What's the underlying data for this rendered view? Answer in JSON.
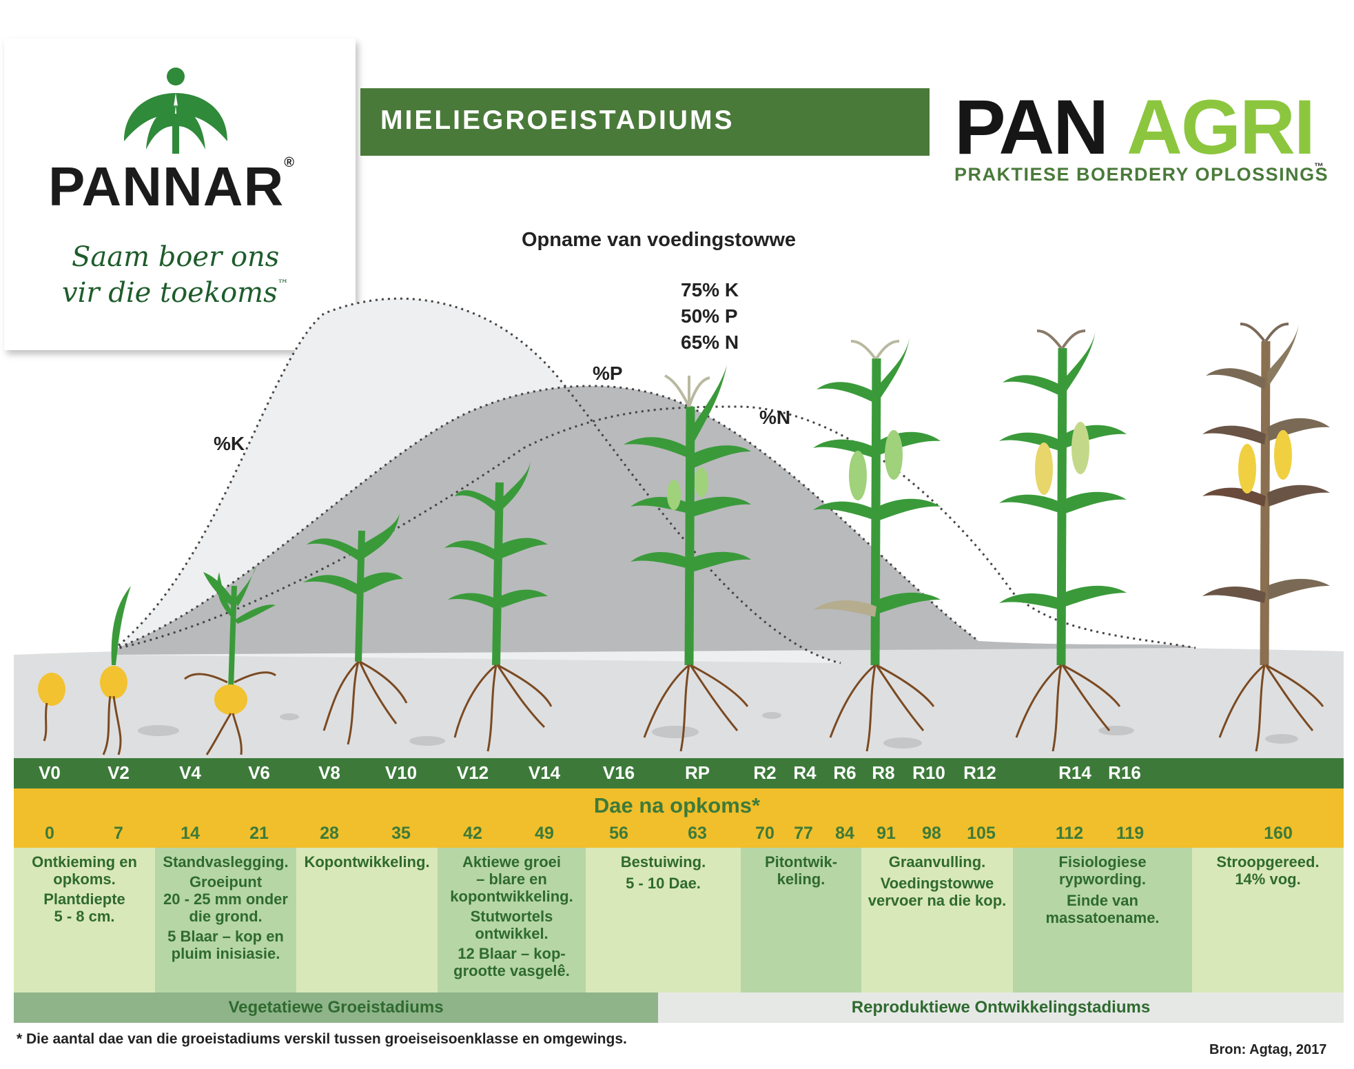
{
  "header": {
    "pannar": {
      "name": "PANNAR",
      "registered": "®",
      "slogan_line1": "Saam boer ons",
      "slogan_line2": "vir die toekoms",
      "tm": "™"
    },
    "title": "MIELIEGROEISTADIUMS",
    "panagri": {
      "name_part1": "PAN",
      "name_part2": "AGRI",
      "tm": "™",
      "subtitle": "PRAKTIESE BOERDERY OPLOSSINGS"
    }
  },
  "uptake": {
    "title": "Opname van voedingstowwe",
    "peak_lines": [
      "75% K",
      "50% P",
      "65% N"
    ],
    "curve_labels": {
      "k": "%K",
      "p": "%P",
      "n": "%N"
    }
  },
  "stages": [
    "V0",
    "V2",
    "V4",
    "V6",
    "V8",
    "V10",
    "V12",
    "V14",
    "V16",
    "RP",
    "R2",
    "R4",
    "R6",
    "R8",
    "R10",
    "R12",
    "R14",
    "R16"
  ],
  "days_label": "Dae na opkoms*",
  "days": [
    "0",
    "7",
    "14",
    "21",
    "28",
    "35",
    "42",
    "49",
    "56",
    "63",
    "70",
    "77",
    "84",
    "91",
    "98",
    "105",
    "112",
    "119",
    "160"
  ],
  "descriptions": [
    {
      "lines": [
        "Ontkieming en",
        "opkoms.",
        "Plantdiepte",
        "5 - 8 cm."
      ]
    },
    {
      "lines": [
        "Standvaslegging.",
        "Groeipunt",
        "20 - 25 mm onder",
        "die grond.",
        "5 Blaar – kop en",
        "pluim inisiasie."
      ]
    },
    {
      "lines": [
        "Kopontwikkeling."
      ]
    },
    {
      "lines": [
        "Aktiewe groei",
        "– blare en",
        "kopontwikkeling.",
        "Stutwortels",
        "ontwikkel.",
        "12 Blaar – kop-",
        "grootte vasgelê."
      ]
    },
    {
      "lines": [
        "Bestuiwing.",
        "5 - 10 Dae."
      ]
    },
    {
      "lines": [
        "Pitontwik-",
        "keling."
      ]
    },
    {
      "lines": [
        "Graanvulling.",
        "Voedingstowwe",
        "vervoer na die kop."
      ]
    },
    {
      "lines": [
        "Fisiologiese",
        "rypwording.",
        "Einde van",
        "massatoename."
      ]
    },
    {
      "lines": [
        "Stroopgereed.",
        "14% vog."
      ]
    }
  ],
  "phases": {
    "vegetative": "Vegetatiewe Groeistadiums",
    "reproductive": "Reproduktiewe Ontwikkelingstadiums"
  },
  "footnote": "* Die aantal dae van die groeistadiums verskil tussen groeiseisoenklasse en omgewings.",
  "source": "Bron: Agtag, 2017",
  "colors": {
    "dark_green": "#3d7a3a",
    "title_green": "#4a7a3a",
    "leaf_green": "#3a9a3a",
    "lime": "#8cc63e",
    "gold": "#f0bf2b",
    "pale_green": "#d9e8b8",
    "mid_green": "#b6d6a6"
  }
}
